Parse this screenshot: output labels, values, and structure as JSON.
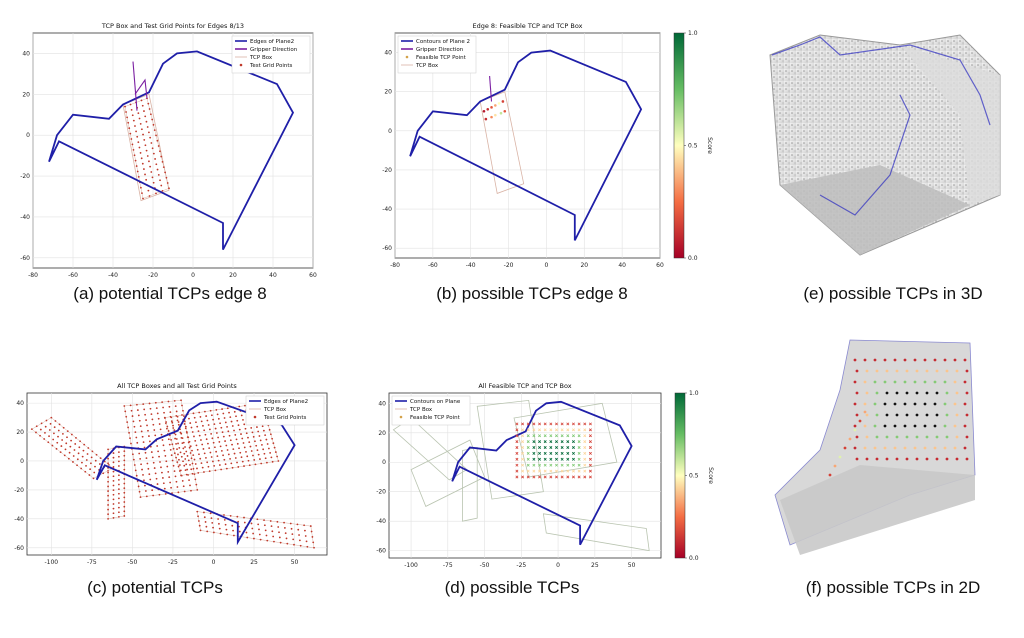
{
  "captions": {
    "a": "(a) potential TCPs edge 8",
    "b": "(b) possible TCPs edge 8",
    "c": "(c) potential TCPs",
    "d": "(d) possible TCPs",
    "e": "(e) possible TCPs in 3D",
    "f": "(f) possible TCPs in 2D"
  },
  "colors": {
    "contour": "#1f1fa8",
    "gripper": "#7b1fa2",
    "grid_point": "#c0392b",
    "tcp_box": "#d9b3a5",
    "feasible_box": "#b9c4b0"
  },
  "chart_data": [
    {
      "id": "a",
      "type": "scatter",
      "title": "TCP Box and Test Grid Points for Edges 8/13",
      "xlim": [
        -80,
        60
      ],
      "ylim": [
        -65,
        50
      ],
      "xticks": [
        -80,
        -60,
        -40,
        -20,
        0,
        20,
        40,
        60
      ],
      "yticks": [
        -60,
        -40,
        -20,
        0,
        20,
        40
      ],
      "grid": true,
      "legend": "top-right",
      "legend_entries": [
        "Edges of Plane2",
        "Gripper Direction",
        "TCP Box",
        "Test Grid Points"
      ],
      "contour": [
        [
          -72,
          -13
        ],
        [
          -68,
          0
        ],
        [
          -60,
          10
        ],
        [
          -42,
          8
        ],
        [
          -35,
          15
        ],
        [
          -22,
          21
        ],
        [
          -15,
          35
        ],
        [
          -8,
          40
        ],
        [
          2,
          41
        ],
        [
          42,
          25
        ],
        [
          50,
          11
        ],
        [
          15,
          -56
        ],
        [
          15,
          -43
        ],
        [
          -67,
          -3
        ],
        [
          -72,
          -13
        ]
      ],
      "gripper_line": [
        [
          -30,
          36
        ],
        [
          -28,
          12
        ]
      ],
      "gripper_tip": [
        [
          -29,
          20
        ],
        [
          -24,
          27
        ],
        [
          -23,
          18
        ]
      ],
      "box": [
        [
          -35,
          15
        ],
        [
          -22,
          20
        ],
        [
          -12,
          -27
        ],
        [
          -26,
          -32
        ]
      ],
      "grid_points": {
        "corners": [
          [
            -34,
            14
          ],
          [
            -23,
            18
          ],
          [
            -12,
            -26
          ],
          [
            -25,
            -31
          ]
        ],
        "rows": 18,
        "cols": 5
      }
    },
    {
      "id": "b",
      "type": "scatter",
      "title": "Edge 8: Feasible TCP and TCP Box",
      "xlim": [
        -80,
        60
      ],
      "ylim": [
        -65,
        50
      ],
      "xticks": [
        -80,
        -60,
        -40,
        -20,
        0,
        20,
        40,
        60
      ],
      "yticks": [
        -60,
        -40,
        -20,
        0,
        20,
        40
      ],
      "grid": true,
      "legend": "top-left",
      "legend_entries": [
        "Contours of Plane 2",
        "Gripper Direction",
        "Feasible TCP Point",
        "TCP Box"
      ],
      "colorbar": {
        "label": "Score",
        "ticks": [
          "0.0",
          "0.5",
          "1.0"
        ]
      },
      "contour": [
        [
          -72,
          -13
        ],
        [
          -68,
          0
        ],
        [
          -60,
          10
        ],
        [
          -42,
          8
        ],
        [
          -35,
          15
        ],
        [
          -22,
          21
        ],
        [
          -15,
          35
        ],
        [
          -8,
          40
        ],
        [
          2,
          41
        ],
        [
          42,
          25
        ],
        [
          50,
          11
        ],
        [
          15,
          -56
        ],
        [
          15,
          -43
        ],
        [
          -67,
          -3
        ],
        [
          -72,
          -13
        ]
      ],
      "gripper_line": [
        [
          -30,
          28
        ],
        [
          -29,
          15
        ]
      ],
      "box": [
        [
          -35,
          15
        ],
        [
          -22,
          20
        ],
        [
          -12,
          -27
        ],
        [
          -26,
          -32
        ]
      ],
      "feasible_points": [
        [
          -33,
          10
        ],
        [
          -31,
          11
        ],
        [
          -29,
          12
        ],
        [
          -27,
          13
        ],
        [
          -25,
          14
        ],
        [
          -23,
          15
        ],
        [
          -32,
          6
        ],
        [
          -29,
          7
        ],
        [
          -27,
          8
        ],
        [
          -24,
          9
        ],
        [
          -22,
          10
        ]
      ],
      "feasible_scores": [
        0.05,
        0.1,
        0.2,
        0.35,
        0.5,
        0.15,
        0.1,
        0.3,
        0.45,
        0.6,
        0.2
      ]
    },
    {
      "id": "c",
      "type": "scatter",
      "title": "All TCP Boxes and all Test Grid Points",
      "xlim": [
        -115,
        70
      ],
      "ylim": [
        -65,
        47
      ],
      "xticks": [
        -100,
        -75,
        -50,
        -25,
        0,
        25,
        50
      ],
      "yticks": [
        -60,
        -40,
        -20,
        0,
        20,
        40
      ],
      "grid": true,
      "legend": "top-right",
      "legend_entries": [
        "Edges of Plane2",
        "TCP Box",
        "Test Grid Points"
      ],
      "contour": [
        [
          -72,
          -13
        ],
        [
          -68,
          0
        ],
        [
          -60,
          10
        ],
        [
          -42,
          8
        ],
        [
          -35,
          15
        ],
        [
          -22,
          21
        ],
        [
          -15,
          35
        ],
        [
          -8,
          40
        ],
        [
          2,
          41
        ],
        [
          42,
          25
        ],
        [
          50,
          11
        ],
        [
          15,
          -56
        ],
        [
          15,
          -43
        ],
        [
          -67,
          -3
        ],
        [
          -72,
          -13
        ]
      ],
      "grid_regions": [
        {
          "corners": [
            [
              -112,
              22
            ],
            [
              -100,
              30
            ],
            [
              -62,
              -5
            ],
            [
              -74,
              -12
            ]
          ],
          "rows": 16,
          "cols": 5
        },
        {
          "corners": [
            [
              -65,
              8
            ],
            [
              -55,
              10
            ],
            [
              -55,
              -38
            ],
            [
              -65,
              -40
            ]
          ],
          "rows": 16,
          "cols": 4
        },
        {
          "corners": [
            [
              -55,
              38
            ],
            [
              -20,
              42
            ],
            [
              -10,
              -20
            ],
            [
              -45,
              -25
            ]
          ],
          "rows": 18,
          "cols": 10
        },
        {
          "corners": [
            [
              -30,
              30
            ],
            [
              30,
              40
            ],
            [
              40,
              0
            ],
            [
              -20,
              -10
            ]
          ],
          "rows": 14,
          "cols": 18
        },
        {
          "corners": [
            [
              -10,
              -35
            ],
            [
              60,
              -45
            ],
            [
              62,
              -60
            ],
            [
              -8,
              -48
            ]
          ],
          "rows": 5,
          "cols": 18
        }
      ]
    },
    {
      "id": "d",
      "type": "scatter",
      "title": "All Feasible TCP and TCP Box",
      "xlim": [
        -115,
        70
      ],
      "ylim": [
        -65,
        47
      ],
      "xticks": [
        -100,
        -75,
        -50,
        -25,
        0,
        25,
        50
      ],
      "yticks": [
        -60,
        -40,
        -20,
        0,
        20,
        40
      ],
      "grid": true,
      "legend": "top-left",
      "legend_entries": [
        "Contours on Plane",
        "TCP Box",
        "Feasible TCP Point"
      ],
      "colorbar": {
        "label": "Score",
        "ticks": [
          "0.0",
          "0.5",
          "1.0"
        ]
      },
      "contour": [
        [
          -72,
          -13
        ],
        [
          -68,
          0
        ],
        [
          -60,
          10
        ],
        [
          -42,
          8
        ],
        [
          -35,
          15
        ],
        [
          -22,
          21
        ],
        [
          -15,
          35
        ],
        [
          -8,
          40
        ],
        [
          2,
          41
        ],
        [
          42,
          25
        ],
        [
          50,
          11
        ],
        [
          15,
          -56
        ],
        [
          15,
          -43
        ],
        [
          -67,
          -3
        ],
        [
          -72,
          -13
        ]
      ],
      "boxes": [
        [
          [
            -112,
            22
          ],
          [
            -100,
            30
          ],
          [
            -62,
            -5
          ],
          [
            -74,
            -12
          ]
        ],
        [
          [
            -65,
            8
          ],
          [
            -55,
            10
          ],
          [
            -55,
            -38
          ],
          [
            -65,
            -40
          ]
        ],
        [
          [
            -55,
            38
          ],
          [
            -20,
            42
          ],
          [
            -10,
            -20
          ],
          [
            -45,
            -25
          ]
        ],
        [
          [
            -30,
            30
          ],
          [
            30,
            40
          ],
          [
            40,
            0
          ],
          [
            -20,
            -10
          ]
        ],
        [
          [
            -10,
            -35
          ],
          [
            60,
            -45
          ],
          [
            62,
            -60
          ],
          [
            -8,
            -48
          ]
        ],
        [
          [
            -100,
            -5
          ],
          [
            -60,
            15
          ],
          [
            -50,
            -10
          ],
          [
            -90,
            -30
          ]
        ]
      ],
      "feasible_region": {
        "corners": [
          [
            -28,
            26
          ],
          [
            22,
            26
          ],
          [
            22,
            -10
          ],
          [
            -28,
            -10
          ]
        ],
        "rows": 10,
        "cols": 14
      }
    }
  ]
}
